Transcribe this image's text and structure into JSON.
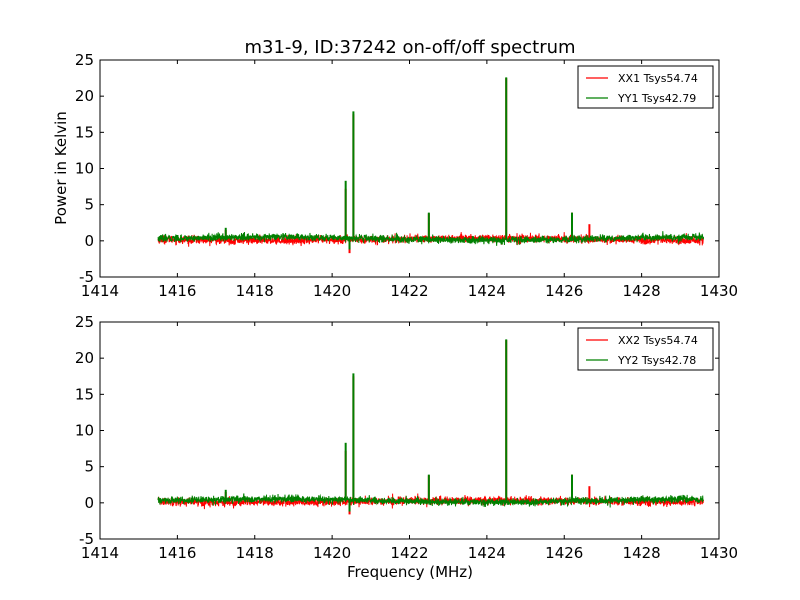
{
  "chart_data": [
    {
      "type": "line",
      "title": "m31-9, ID:37242 on-off/off spectrum",
      "xlabel": "",
      "ylabel": "Power in Kelvin",
      "xlim": [
        1414,
        1430
      ],
      "ylim": [
        -5,
        25
      ],
      "xticks": [
        1414,
        1416,
        1418,
        1420,
        1422,
        1424,
        1426,
        1428,
        1430
      ],
      "yticks": [
        -5,
        0,
        5,
        10,
        15,
        20,
        25
      ],
      "x_range": [
        1415.5,
        1429.6
      ],
      "grid": false,
      "legend_position": "top-right",
      "series": [
        {
          "name": "XX1 Tsys54.74",
          "color": "#ff0000",
          "baseline": 0.2,
          "noise": 0.5,
          "peaks": [
            {
              "x": 1417.25,
              "y": 1.5
            },
            {
              "x": 1420.35,
              "y": 7.2
            },
            {
              "x": 1420.45,
              "y": -1.7
            },
            {
              "x": 1420.55,
              "y": 17.5
            },
            {
              "x": 1422.5,
              "y": 3.8
            },
            {
              "x": 1424.5,
              "y": 22.5
            },
            {
              "x": 1426.2,
              "y": 3.9
            },
            {
              "x": 1426.65,
              "y": 2.3
            }
          ]
        },
        {
          "name": "YY1 Tsys42.79",
          "color": "#008000",
          "baseline": 0.3,
          "noise": 0.45,
          "peaks": [
            {
              "x": 1417.25,
              "y": 1.8
            },
            {
              "x": 1420.35,
              "y": 8.3
            },
            {
              "x": 1420.45,
              "y": -1.2
            },
            {
              "x": 1420.55,
              "y": 17.9
            },
            {
              "x": 1422.5,
              "y": 3.9
            },
            {
              "x": 1424.5,
              "y": 22.6
            },
            {
              "x": 1426.2,
              "y": 3.9
            }
          ]
        }
      ]
    },
    {
      "type": "line",
      "title": "",
      "xlabel": "Frequency (MHz)",
      "ylabel": "",
      "xlim": [
        1414,
        1430
      ],
      "ylim": [
        -5,
        25
      ],
      "xticks": [
        1414,
        1416,
        1418,
        1420,
        1422,
        1424,
        1426,
        1428,
        1430
      ],
      "yticks": [
        -5,
        0,
        5,
        10,
        15,
        20,
        25
      ],
      "x_range": [
        1415.5,
        1429.6
      ],
      "grid": false,
      "legend_position": "top-right",
      "series": [
        {
          "name": "XX2 Tsys54.74",
          "color": "#ff0000",
          "baseline": 0.2,
          "noise": 0.5,
          "peaks": [
            {
              "x": 1417.25,
              "y": 1.5
            },
            {
              "x": 1420.35,
              "y": 7.2
            },
            {
              "x": 1420.45,
              "y": -1.6
            },
            {
              "x": 1420.55,
              "y": 17.5
            },
            {
              "x": 1422.5,
              "y": 3.8
            },
            {
              "x": 1424.5,
              "y": 22.5
            },
            {
              "x": 1426.2,
              "y": 3.9
            },
            {
              "x": 1426.65,
              "y": 2.3
            }
          ]
        },
        {
          "name": "YY2 Tsys42.78",
          "color": "#008000",
          "baseline": 0.3,
          "noise": 0.45,
          "peaks": [
            {
              "x": 1417.25,
              "y": 1.8
            },
            {
              "x": 1420.35,
              "y": 8.3
            },
            {
              "x": 1420.45,
              "y": -1.2
            },
            {
              "x": 1420.55,
              "y": 17.9
            },
            {
              "x": 1422.5,
              "y": 3.9
            },
            {
              "x": 1424.5,
              "y": 22.6
            },
            {
              "x": 1426.2,
              "y": 3.9
            }
          ]
        }
      ]
    }
  ]
}
